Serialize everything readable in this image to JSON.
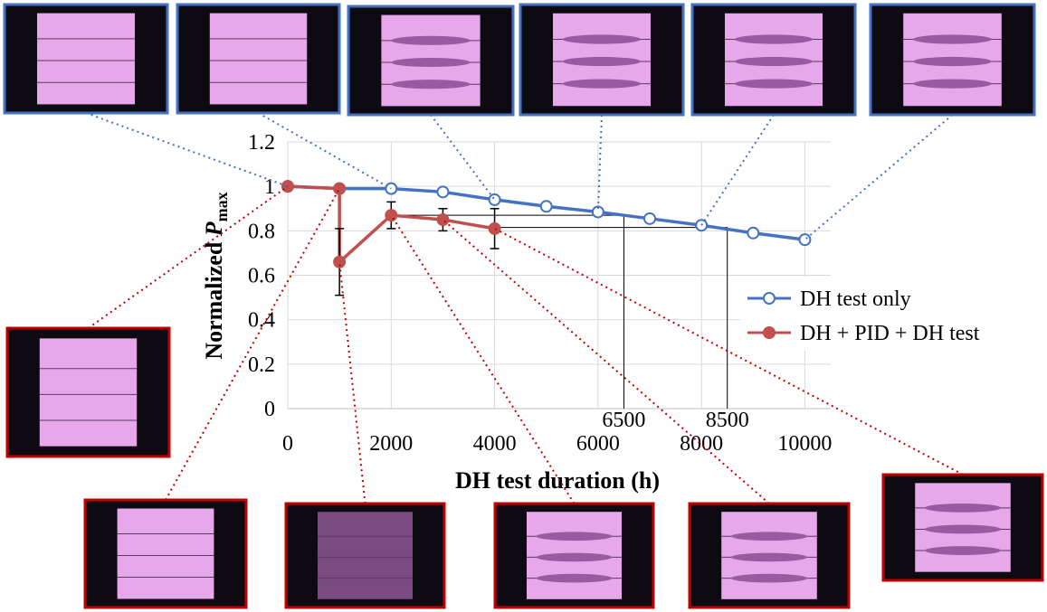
{
  "chart_data": {
    "type": "line",
    "xlabel": "DH test duration (h)",
    "ylabel_parts": [
      "Normalized ",
      "P",
      "max"
    ],
    "xlim": [
      0,
      10500
    ],
    "ylim": [
      0,
      1.2
    ],
    "xticks": [
      0,
      2000,
      4000,
      6000,
      8000,
      10000
    ],
    "yticks": [
      0,
      0.2,
      0.4,
      0.6,
      0.8,
      1,
      1.2
    ],
    "grid": true,
    "legend": "right",
    "series": [
      {
        "name": "DH test only",
        "color": "#4472c4",
        "marker": "open",
        "x": [
          0,
          1000,
          2000,
          3000,
          4000,
          5000,
          6000,
          7000,
          8000,
          9000,
          10000
        ],
        "values": [
          1,
          0.99,
          0.99,
          0.975,
          0.94,
          0.91,
          0.885,
          0.855,
          0.825,
          0.79,
          0.76
        ]
      },
      {
        "name": "DH + PID + DH test",
        "color": "#c0504d",
        "marker": "filled",
        "x": [
          0,
          1000,
          1000,
          2000,
          3000,
          4000
        ],
        "values": [
          1,
          0.99,
          0.66,
          0.87,
          0.85,
          0.81
        ],
        "errors": [
          null,
          null,
          0.15,
          0.06,
          0.05,
          0.09
        ]
      }
    ],
    "annotations": [
      {
        "x": 6500,
        "y": 0.87,
        "x_from": 2000
      },
      {
        "x": 8500,
        "y": 0.815,
        "x_from": 4000
      }
    ]
  }
}
